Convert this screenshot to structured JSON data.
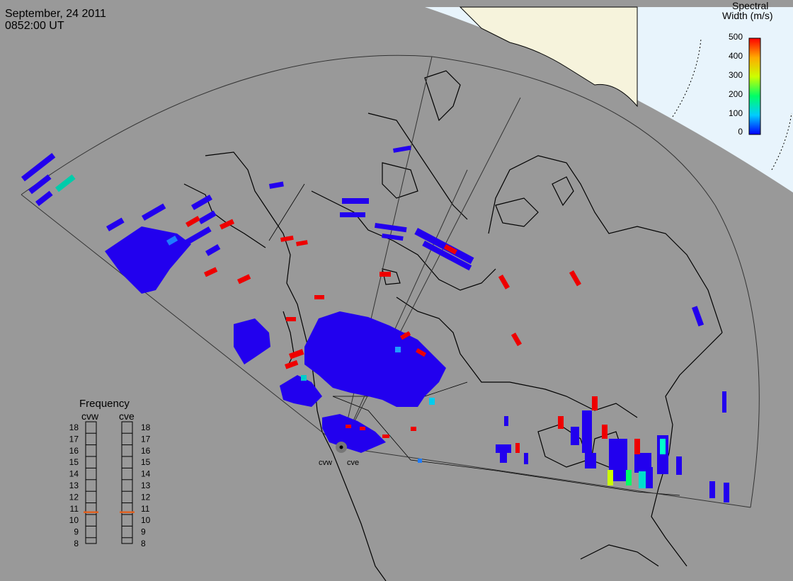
{
  "header": {
    "date": "September, 24 2011",
    "time": "0852:00 UT"
  },
  "colorbar": {
    "title_line1": "Spectral",
    "title_line2": "Width (m/s)",
    "ticks": [
      "500",
      "400",
      "300",
      "200",
      "100",
      "0"
    ]
  },
  "frequency_panel": {
    "title": "Frequency",
    "radars": [
      {
        "label": "cvw",
        "value_mhz": 10.7
      },
      {
        "label": "cve",
        "value_mhz": 10.7
      }
    ],
    "scale": [
      "18",
      "17",
      "16",
      "15",
      "14",
      "13",
      "12",
      "11",
      "10",
      "9",
      "8"
    ]
  },
  "stations": [
    {
      "label": "cvw"
    },
    {
      "label": "cve"
    }
  ],
  "colors": {
    "background_gray": "#999999",
    "daylight": "#e8f4fc",
    "land_day": "#f6f3dc",
    "scatter_low": "#2200ee",
    "scatter_high": "#ee0000",
    "scatter_mid": "#00cccc",
    "frequency_marker": "#e06020"
  }
}
